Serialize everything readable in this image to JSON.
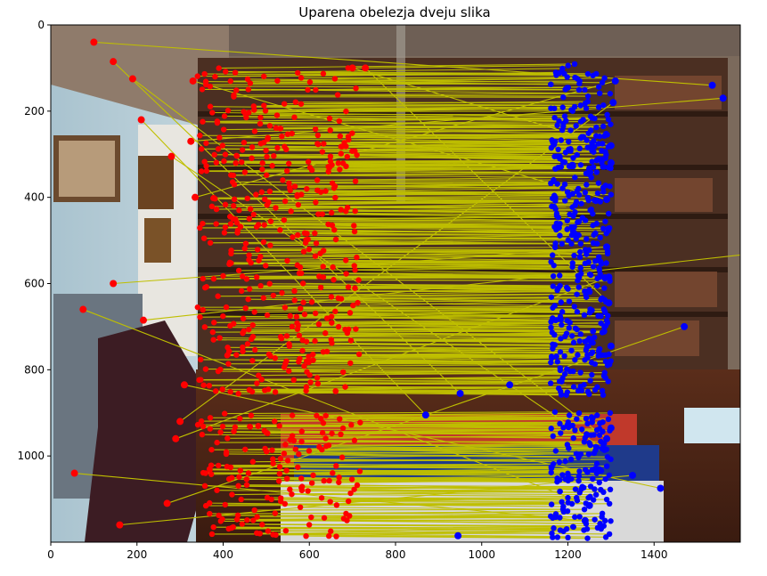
{
  "chart": {
    "title": "Uparena obelezja dveju slika",
    "x_tick_labels": [
      "0",
      "200",
      "400",
      "600",
      "800",
      "1000",
      "1200",
      "1400"
    ],
    "y_tick_labels": [
      "0",
      "200",
      "400",
      "600",
      "800",
      "1000"
    ]
  },
  "chart_data": {
    "type": "scatter",
    "title": "Uparena obelezja dveju slika",
    "xlabel": "",
    "ylabel": "",
    "xlim": [
      0,
      1600
    ],
    "ylim": [
      1200,
      0
    ],
    "x_ticks": [
      0,
      200,
      400,
      600,
      800,
      1000,
      1200,
      1400
    ],
    "y_ticks": [
      0,
      200,
      400,
      600,
      800,
      1000
    ],
    "image_split_x": 800,
    "colors": {
      "left_points": "#ff0000",
      "right_points": "#0000ff",
      "match_lines": "#bfbf00"
    },
    "series": [
      {
        "name": "",
        "points_left": [
          [
            100,
            40
          ],
          [
            145,
            85
          ],
          [
            190,
            125
          ],
          [
            330,
            130
          ],
          [
            280,
            305
          ],
          [
            325,
            270
          ],
          [
            210,
            220
          ],
          [
            335,
            400
          ],
          [
            145,
            600
          ],
          [
            75,
            660
          ],
          [
            215,
            685
          ],
          [
            310,
            835
          ],
          [
            300,
            920
          ],
          [
            290,
            960
          ],
          [
            55,
            1040
          ],
          [
            270,
            1110
          ],
          [
            160,
            1160
          ],
          [
            700,
            100
          ],
          [
            730,
            100
          ]
        ],
        "points_right": [
          [
            1535,
            140
          ],
          [
            1560,
            170
          ],
          [
            1635,
            530
          ],
          [
            1470,
            700
          ],
          [
            1065,
            835
          ],
          [
            950,
            855
          ],
          [
            870,
            905
          ],
          [
            1415,
            1075
          ],
          [
            1350,
            1045
          ],
          [
            1300,
            935
          ],
          [
            1290,
            960
          ],
          [
            1310,
            130
          ],
          [
            1305,
            180
          ],
          [
            1300,
            280
          ],
          [
            1300,
            320
          ],
          [
            1290,
            405
          ],
          [
            1290,
            515
          ],
          [
            1295,
            585
          ],
          [
            1295,
            645
          ],
          [
            1300,
            745
          ],
          [
            1285,
            985
          ],
          [
            1250,
            1115
          ],
          [
            1240,
            1150
          ],
          [
            945,
            1185
          ]
        ]
      }
    ]
  }
}
